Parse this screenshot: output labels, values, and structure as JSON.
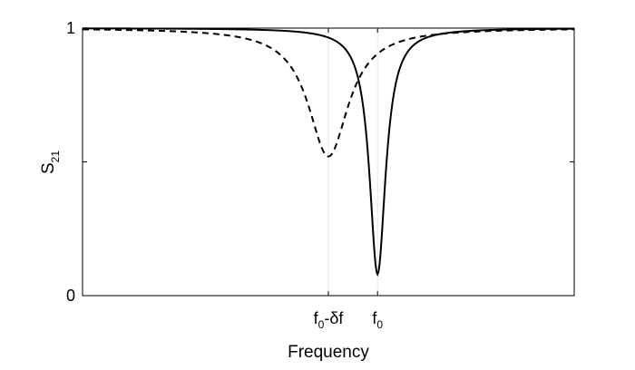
{
  "chart_data": {
    "type": "line",
    "xlabel": "Frequency",
    "ylabel": {
      "main": "S",
      "sub": "21"
    },
    "ylim": [
      0,
      1
    ],
    "xlim": [
      0,
      1
    ],
    "grid": "vertical lines at marked x ticks only",
    "y_ticks": [
      {
        "value": 0,
        "label": "0"
      },
      {
        "value": 0.5,
        "label": ""
      },
      {
        "value": 1,
        "label": "1"
      }
    ],
    "x_ticks": [
      {
        "value": 0.5,
        "label": {
          "main": "f",
          "sub": "0",
          "rest": "-δf"
        }
      },
      {
        "value": 0.6,
        "label": {
          "main": "f",
          "sub": "0",
          "rest": ""
        }
      }
    ],
    "series": [
      {
        "style": "solid",
        "color": "#000000",
        "resonance_x": 0.6,
        "min_value": 0.08,
        "half_width": 0.02
      },
      {
        "style": "dashed",
        "color": "#000000",
        "resonance_x": 0.5,
        "min_value": 0.52,
        "half_width": 0.05
      }
    ]
  }
}
